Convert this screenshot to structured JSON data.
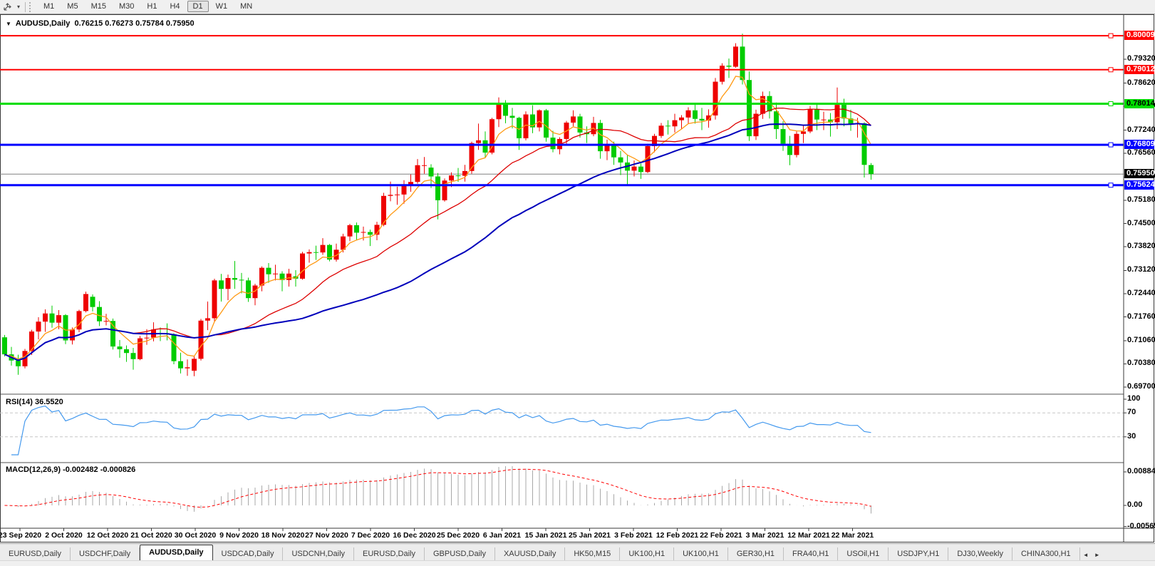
{
  "toolbar": {
    "cursor_tool_icon": "move-cursor",
    "cursor_caret": "▾",
    "timeframes": [
      "M1",
      "M5",
      "M15",
      "M30",
      "H1",
      "H4",
      "D1",
      "W1",
      "MN"
    ],
    "active_timeframe": "D1"
  },
  "chart": {
    "collapse_icon": "▼",
    "symbol_title": "AUDUSD,Daily",
    "ohlc_text": "0.76215 0.76273 0.75784 0.75950",
    "colors": {
      "up": "#EE0000",
      "down": "#00CC00",
      "current_line": "#808080"
    },
    "price_axis": {
      "ticks": [
        "0.79320",
        "0.78620",
        "0.77940",
        "0.77240",
        "0.76560",
        "0.75860",
        "0.75180",
        "0.74500",
        "0.73820",
        "0.73120",
        "0.72440",
        "0.71760",
        "0.71060",
        "0.70380",
        "0.69700"
      ],
      "levels": [
        {
          "label": "0.80009",
          "color": "#FF0000",
          "bg": "#FF0000",
          "fg": "#FFFFFF",
          "width": 2
        },
        {
          "label": "0.79012",
          "color": "#FF0000",
          "bg": "#FF0000",
          "fg": "#FFFFFF",
          "width": 2
        },
        {
          "label": "0.78014",
          "color": "#00DD00",
          "bg": "#00DD00",
          "fg": "#000000",
          "width": 3
        },
        {
          "label": "0.76809",
          "color": "#0000FF",
          "bg": "#0000FF",
          "fg": "#FFFFFF",
          "width": 3
        },
        {
          "label": "0.75624",
          "color": "#0000FF",
          "bg": "#0000FF",
          "fg": "#FFFFFF",
          "width": 3
        }
      ],
      "current_price": {
        "label": "0.75950",
        "bg": "#000000",
        "fg": "#FFFFFF"
      }
    },
    "moving_averages": [
      {
        "name": "ma-fast",
        "type": "ema",
        "period": 6,
        "color": "#FF9912",
        "width": 1.3
      },
      {
        "name": "ma-mid",
        "type": "sma",
        "period": 20,
        "color": "#DD0000",
        "width": 1.3
      },
      {
        "name": "ma-slow",
        "type": "sma",
        "period": 45,
        "color": "#0000BB",
        "width": 2
      }
    ],
    "indicators": {
      "rsi": {
        "label": "RSI(14)",
        "value": "36.5520",
        "period": 14,
        "axis_labels": [
          "100",
          "70",
          "30"
        ],
        "level_lines": [
          70,
          30
        ],
        "color": "#4499EE"
      },
      "macd": {
        "label": "MACD(12,26,9)",
        "value": "-0.002482 -0.000826",
        "fast": 12,
        "slow": 26,
        "signal": 9,
        "axis_labels": [
          "0.00884",
          "0.00",
          "-0.005651"
        ],
        "bar_color": "#A8A8A8",
        "signal_color": "#FF0000"
      }
    }
  },
  "chart_data": {
    "type": "candlestick",
    "title": "AUDUSD Daily",
    "x_labels": [
      "23 Sep 2020",
      "2 Oct 2020",
      "12 Oct 2020",
      "21 Oct 2020",
      "30 Oct 2020",
      "9 Nov 2020",
      "18 Nov 2020",
      "27 Nov 2020",
      "7 Dec 2020",
      "16 Dec 2020",
      "25 Dec 2020",
      "6 Jan 2021",
      "15 Jan 2021",
      "25 Jan 2021",
      "3 Feb 2021",
      "12 Feb 2021",
      "22 Feb 2021",
      "3 Mar 2021",
      "12 Mar 2021",
      "22 Mar 2021"
    ],
    "y_range": [
      0.697,
      0.8064
    ],
    "candles_ohlc": [
      [
        0.7116,
        0.7123,
        0.706,
        0.7066
      ],
      [
        0.7066,
        0.7088,
        0.7033,
        0.7048
      ],
      [
        0.7048,
        0.7065,
        0.7006,
        0.7031
      ],
      [
        0.7031,
        0.7082,
        0.7025,
        0.7076
      ],
      [
        0.7076,
        0.7138,
        0.7064,
        0.7133
      ],
      [
        0.7133,
        0.7175,
        0.711,
        0.7162
      ],
      [
        0.7162,
        0.7198,
        0.7132,
        0.7186
      ],
      [
        0.7186,
        0.7209,
        0.7144,
        0.7159
      ],
      [
        0.7159,
        0.7196,
        0.714,
        0.7181
      ],
      [
        0.7181,
        0.7184,
        0.7096,
        0.7107
      ],
      [
        0.7107,
        0.7145,
        0.7095,
        0.7139
      ],
      [
        0.7139,
        0.7197,
        0.7131,
        0.7193
      ],
      [
        0.7193,
        0.725,
        0.7189,
        0.7243
      ],
      [
        0.7235,
        0.7242,
        0.7192,
        0.7205
      ],
      [
        0.7205,
        0.7222,
        0.7149,
        0.7163
      ],
      [
        0.7163,
        0.7185,
        0.7151,
        0.7164
      ],
      [
        0.7164,
        0.7171,
        0.708,
        0.7089
      ],
      [
        0.7089,
        0.7108,
        0.7056,
        0.7081
      ],
      [
        0.7081,
        0.7092,
        0.7044,
        0.707
      ],
      [
        0.707,
        0.7085,
        0.7021,
        0.7052
      ],
      [
        0.7052,
        0.712,
        0.7049,
        0.7113
      ],
      [
        0.7113,
        0.714,
        0.7094,
        0.7115
      ],
      [
        0.7115,
        0.716,
        0.7104,
        0.7139
      ],
      [
        0.7129,
        0.7145,
        0.7105,
        0.7128
      ],
      [
        0.7128,
        0.7157,
        0.7107,
        0.7125
      ],
      [
        0.7125,
        0.7128,
        0.7037,
        0.7046
      ],
      [
        0.7046,
        0.7071,
        0.701,
        0.7025
      ],
      [
        0.7025,
        0.7051,
        0.7003,
        0.7028
      ],
      [
        0.7018,
        0.7062,
        0.7002,
        0.7053
      ],
      [
        0.7053,
        0.717,
        0.7048,
        0.7165
      ],
      [
        0.7165,
        0.7221,
        0.7137,
        0.7172
      ],
      [
        0.7172,
        0.7288,
        0.7161,
        0.7283
      ],
      [
        0.7283,
        0.7302,
        0.7221,
        0.7258
      ],
      [
        0.7258,
        0.73,
        0.7225,
        0.729
      ],
      [
        0.729,
        0.734,
        0.7258,
        0.7285
      ],
      [
        0.7285,
        0.7305,
        0.7245,
        0.7283
      ],
      [
        0.7283,
        0.7291,
        0.722,
        0.7231
      ],
      [
        0.7231,
        0.7273,
        0.721,
        0.7268
      ],
      [
        0.7268,
        0.7324,
        0.7251,
        0.732
      ],
      [
        0.732,
        0.7334,
        0.7276,
        0.7301
      ],
      [
        0.7301,
        0.7329,
        0.7283,
        0.7303
      ],
      [
        0.7303,
        0.731,
        0.7251,
        0.7284
      ],
      [
        0.7284,
        0.7317,
        0.7265,
        0.7303
      ],
      [
        0.7295,
        0.7313,
        0.7265,
        0.7288
      ],
      [
        0.7288,
        0.7367,
        0.7285,
        0.7362
      ],
      [
        0.7362,
        0.7374,
        0.7335,
        0.7366
      ],
      [
        0.7366,
        0.7385,
        0.7343,
        0.7365
      ],
      [
        0.7365,
        0.7407,
        0.7358,
        0.7387
      ],
      [
        0.7387,
        0.739,
        0.7339,
        0.7344
      ],
      [
        0.7344,
        0.7391,
        0.7338,
        0.7373
      ],
      [
        0.7373,
        0.742,
        0.7365,
        0.7412
      ],
      [
        0.7412,
        0.7449,
        0.7398,
        0.7445
      ],
      [
        0.7445,
        0.7453,
        0.7401,
        0.7423
      ],
      [
        0.7423,
        0.7441,
        0.74,
        0.7425
      ],
      [
        0.7425,
        0.7432,
        0.7384,
        0.7417
      ],
      [
        0.7417,
        0.7455,
        0.7401,
        0.7446
      ],
      [
        0.7446,
        0.754,
        0.7442,
        0.7531
      ],
      [
        0.7531,
        0.7573,
        0.7515,
        0.7534
      ],
      [
        0.7534,
        0.7558,
        0.7505,
        0.7535
      ],
      [
        0.7535,
        0.7577,
        0.7508,
        0.7562
      ],
      [
        0.7562,
        0.7594,
        0.7543,
        0.7572
      ],
      [
        0.7572,
        0.7639,
        0.7567,
        0.7621
      ],
      [
        0.7621,
        0.7645,
        0.7596,
        0.7621
      ],
      [
        0.7614,
        0.7624,
        0.7554,
        0.7588
      ],
      [
        0.7588,
        0.7598,
        0.7462,
        0.7518
      ],
      [
        0.7518,
        0.7582,
        0.7514,
        0.7576
      ],
      [
        0.7576,
        0.76,
        0.7557,
        0.7591
      ],
      [
        0.7591,
        0.7613,
        0.7572,
        0.759
      ],
      [
        0.759,
        0.7622,
        0.7573,
        0.7604
      ],
      [
        0.7604,
        0.769,
        0.7596,
        0.7686
      ],
      [
        0.7686,
        0.7743,
        0.7666,
        0.7694
      ],
      [
        0.7694,
        0.772,
        0.7642,
        0.7658
      ],
      [
        0.7658,
        0.776,
        0.7653,
        0.7756
      ],
      [
        0.7756,
        0.782,
        0.7733,
        0.7803
      ],
      [
        0.7803,
        0.7812,
        0.7744,
        0.7766
      ],
      [
        0.7766,
        0.7789,
        0.7729,
        0.776
      ],
      [
        0.776,
        0.7763,
        0.7666,
        0.77
      ],
      [
        0.77,
        0.7779,
        0.7694,
        0.777
      ],
      [
        0.777,
        0.7797,
        0.7715,
        0.7732
      ],
      [
        0.7732,
        0.7785,
        0.772,
        0.7782
      ],
      [
        0.7782,
        0.7786,
        0.769,
        0.7702
      ],
      [
        0.7702,
        0.7722,
        0.7659,
        0.7668
      ],
      [
        0.7668,
        0.7703,
        0.7653,
        0.7698
      ],
      [
        0.7698,
        0.7751,
        0.7683,
        0.7746
      ],
      [
        0.7746,
        0.7782,
        0.7735,
        0.7764
      ],
      [
        0.7764,
        0.7772,
        0.7702,
        0.7717
      ],
      [
        0.7717,
        0.7735,
        0.7686,
        0.7712
      ],
      [
        0.7712,
        0.7763,
        0.7706,
        0.7745
      ],
      [
        0.7745,
        0.7754,
        0.764,
        0.7662
      ],
      [
        0.7662,
        0.7696,
        0.7636,
        0.768
      ],
      [
        0.768,
        0.769,
        0.7622,
        0.7644
      ],
      [
        0.7644,
        0.7663,
        0.7592,
        0.7629
      ],
      [
        0.7629,
        0.765,
        0.7564,
        0.7605
      ],
      [
        0.7605,
        0.7635,
        0.7588,
        0.7617
      ],
      [
        0.7617,
        0.7626,
        0.7581,
        0.7601
      ],
      [
        0.7601,
        0.7684,
        0.7598,
        0.7677
      ],
      [
        0.7677,
        0.7713,
        0.7659,
        0.7707
      ],
      [
        0.7707,
        0.7745,
        0.7701,
        0.7737
      ],
      [
        0.7737,
        0.7753,
        0.7711,
        0.7735
      ],
      [
        0.7735,
        0.7772,
        0.7717,
        0.7753
      ],
      [
        0.7753,
        0.7768,
        0.7727,
        0.7761
      ],
      [
        0.7761,
        0.7791,
        0.7743,
        0.7782
      ],
      [
        0.7782,
        0.7799,
        0.7743,
        0.7757
      ],
      [
        0.7757,
        0.7789,
        0.7724,
        0.7752
      ],
      [
        0.7752,
        0.7785,
        0.7731,
        0.7767
      ],
      [
        0.7767,
        0.7877,
        0.7755,
        0.7866
      ],
      [
        0.7866,
        0.792,
        0.7858,
        0.7913
      ],
      [
        0.7913,
        0.7934,
        0.7877,
        0.791
      ],
      [
        0.791,
        0.7979,
        0.7907,
        0.7969
      ],
      [
        0.7969,
        0.8007,
        0.7858,
        0.7871
      ],
      [
        0.7871,
        0.7896,
        0.7692,
        0.7706
      ],
      [
        0.7706,
        0.7784,
        0.7695,
        0.7772
      ],
      [
        0.7772,
        0.7837,
        0.7757,
        0.7824
      ],
      [
        0.7824,
        0.7838,
        0.7758,
        0.7779
      ],
      [
        0.7779,
        0.7805,
        0.7698,
        0.7727
      ],
      [
        0.7727,
        0.775,
        0.7663,
        0.7684
      ],
      [
        0.7684,
        0.7707,
        0.7621,
        0.7651
      ],
      [
        0.7651,
        0.772,
        0.7644,
        0.7713
      ],
      [
        0.7713,
        0.7738,
        0.7686,
        0.772
      ],
      [
        0.772,
        0.7795,
        0.7715,
        0.7786
      ],
      [
        0.7786,
        0.78,
        0.7724,
        0.7755
      ],
      [
        0.7755,
        0.7778,
        0.7724,
        0.7755
      ],
      [
        0.7755,
        0.7774,
        0.7705,
        0.7747
      ],
      [
        0.7747,
        0.7849,
        0.7727,
        0.7798
      ],
      [
        0.7798,
        0.7816,
        0.7735,
        0.7758
      ],
      [
        0.7758,
        0.7784,
        0.7722,
        0.7743
      ],
      [
        0.7743,
        0.776,
        0.7702,
        0.7744
      ],
      [
        0.7744,
        0.7747,
        0.7585,
        0.7622
      ],
      [
        0.76215,
        0.76273,
        0.75784,
        0.7595
      ]
    ]
  },
  "tabs": {
    "scroll_left": "◄",
    "scroll_right": "►",
    "items": [
      {
        "label": "EURUSD,Daily",
        "active": false
      },
      {
        "label": "USDCHF,Daily",
        "active": false
      },
      {
        "label": "AUDUSD,Daily",
        "active": true
      },
      {
        "label": "USDCAD,Daily",
        "active": false
      },
      {
        "label": "USDCNH,Daily",
        "active": false
      },
      {
        "label": "EURUSD,Daily",
        "active": false
      },
      {
        "label": "GBPUSD,Daily",
        "active": false
      },
      {
        "label": "XAUUSD,Daily",
        "active": false
      },
      {
        "label": "HK50,M15",
        "active": false
      },
      {
        "label": "UK100,H1",
        "active": false
      },
      {
        "label": "UK100,H1",
        "active": false
      },
      {
        "label": "GER30,H1",
        "active": false
      },
      {
        "label": "FRA40,H1",
        "active": false
      },
      {
        "label": "USOil,H1",
        "active": false
      },
      {
        "label": "USDJPY,H1",
        "active": false
      },
      {
        "label": "DJ30,Weekly",
        "active": false
      },
      {
        "label": "CHINA300,H1",
        "active": false
      }
    ]
  }
}
